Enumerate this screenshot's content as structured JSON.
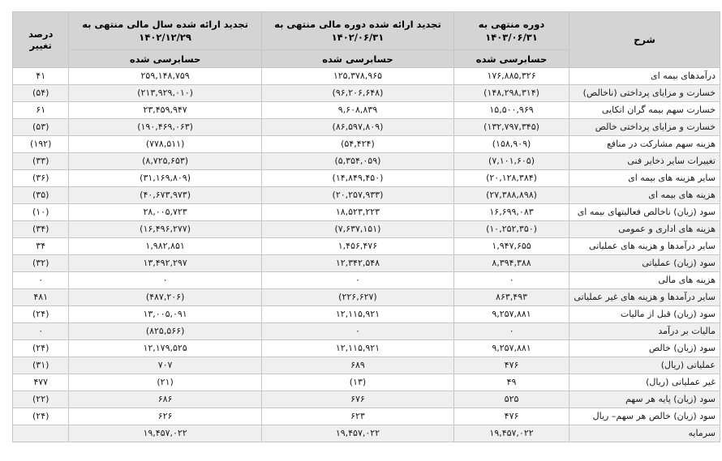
{
  "colors": {
    "header_background": "#d4d4d4",
    "row_alternate_background": "#efefef",
    "row_background": "#ffffff",
    "border": "#c6c6c6",
    "text": "#1a1a1a"
  },
  "table": {
    "header": {
      "description": "شرح",
      "current": {
        "title": "دوره منتهی به",
        "date": "۱۴۰۳/۰۶/۳۱"
      },
      "restated_period": {
        "title": "تجدید ارائه شده دوره مالی منتهی به",
        "date": "۱۴۰۲/۰۶/۳۱"
      },
      "restated_year": {
        "title": "تجدید ارائه شده سال مالی منتهی به",
        "date": "۱۴۰۲/۱۲/۲۹"
      },
      "audited_label": "حسابرسی شده",
      "percent_change": "درصد تغییر"
    },
    "rows": [
      {
        "label": "درآمدهای بیمه ای",
        "current": "۱۷۶,۸۸۵,۳۲۶",
        "restated_period": "۱۲۵,۳۷۸,۹۶۵",
        "restated_year": "۲۵۹,۱۴۸,۷۵۹",
        "pct": "۴۱"
      },
      {
        "label": "خسارت و مزایای پرداختی (ناخالص)",
        "current": "(۱۴۸,۲۹۸,۳۱۴)",
        "restated_period": "(۹۶,۲۰۶,۶۴۸)",
        "restated_year": "(۲۱۳,۹۲۹,۰۱۰)",
        "pct": "(۵۴)"
      },
      {
        "label": "خسارت سهم بیمه گران اتکایی",
        "current": "۱۵,۵۰۰,۹۶۹",
        "restated_period": "۹,۶۰۸,۸۳۹",
        "restated_year": "۲۳,۴۵۹,۹۴۷",
        "pct": "۶۱"
      },
      {
        "label": "خسارت و مزایای پرداختی خالص",
        "current": "(۱۳۲,۷۹۷,۳۴۵)",
        "restated_period": "(۸۶,۵۹۷,۸۰۹)",
        "restated_year": "(۱۹۰,۴۶۹,۰۶۳)",
        "pct": "(۵۳)"
      },
      {
        "label": "هزینه سهم مشارکت در منافع",
        "current": "(۱۵۸,۹۰۹)",
        "restated_period": "(۵۴,۴۲۴)",
        "restated_year": "(۷۷۸,۵۱۱)",
        "pct": "(۱۹۲)"
      },
      {
        "label": "تغییرات سایر ذخایر فنی",
        "current": "(۷,۱۰۱,۶۰۵)",
        "restated_period": "(۵,۳۵۴,۰۵۹)",
        "restated_year": "(۸,۷۲۵,۶۵۳)",
        "pct": "(۳۳)"
      },
      {
        "label": "سایر هزینه های بیمه ای",
        "current": "(۲۰,۱۲۸,۳۸۴)",
        "restated_period": "(۱۴,۸۴۹,۴۵۰)",
        "restated_year": "(۳۱,۱۶۹,۸۰۹)",
        "pct": "(۳۶)"
      },
      {
        "label": "هزینه های بیمه ای",
        "current": "(۲۷,۳۸۸,۸۹۸)",
        "restated_period": "(۲۰,۲۵۷,۹۳۳)",
        "restated_year": "(۴۰,۶۷۳,۹۷۳)",
        "pct": "(۳۵)"
      },
      {
        "label": "سود (زیان) ناخالص فعالیتهای بیمه ای",
        "current": "۱۶,۶۹۹,۰۸۳",
        "restated_period": "۱۸,۵۲۳,۲۲۳",
        "restated_year": "۲۸,۰۰۵,۷۲۳",
        "pct": "(۱۰)"
      },
      {
        "label": "هزینه های اداری و عمومی",
        "current": "(۱۰,۲۵۲,۳۵۰)",
        "restated_period": "(۷,۶۳۷,۱۵۱)",
        "restated_year": "(۱۶,۴۹۶,۲۷۷)",
        "pct": "(۳۴)"
      },
      {
        "label": "سایر درآمدها و هزینه های عملیاتی",
        "current": "۱,۹۴۷,۶۵۵",
        "restated_period": "۱,۴۵۶,۴۷۶",
        "restated_year": "۱,۹۸۲,۸۵۱",
        "pct": "۳۴"
      },
      {
        "label": "سود (زیان) عملیاتی",
        "current": "۸,۳۹۴,۳۸۸",
        "restated_period": "۱۲,۳۴۲,۵۴۸",
        "restated_year": "۱۳,۴۹۲,۲۹۷",
        "pct": "(۳۲)"
      },
      {
        "label": "هزینه های مالی",
        "current": "۰",
        "restated_period": "۰",
        "restated_year": "۰",
        "pct": "۰"
      },
      {
        "label": "سایر درآمدها و هزینه های غیر عملیاتی",
        "current": "۸۶۳,۴۹۳",
        "restated_period": "(۲۲۶,۶۲۷)",
        "restated_year": "(۴۸۷,۲۰۶)",
        "pct": "۴۸۱"
      },
      {
        "label": "سود (زیان) قبل از مالیات",
        "current": "۹,۲۵۷,۸۸۱",
        "restated_period": "۱۲,۱۱۵,۹۲۱",
        "restated_year": "۱۳,۰۰۵,۰۹۱",
        "pct": "(۲۴)"
      },
      {
        "label": "مالیات بر درآمد",
        "current": "۰",
        "restated_period": "۰",
        "restated_year": "(۸۲۵,۵۶۶)",
        "pct": "۰"
      },
      {
        "label": "سود (زیان) خالص",
        "current": "۹,۲۵۷,۸۸۱",
        "restated_period": "۱۲,۱۱۵,۹۲۱",
        "restated_year": "۱۲,۱۷۹,۵۲۵",
        "pct": "(۲۴)"
      },
      {
        "label": "عملیاتی (ریال)",
        "current": "۴۷۶",
        "restated_period": "۶۸۹",
        "restated_year": "۷۰۷",
        "pct": "(۳۱)"
      },
      {
        "label": "غیر عملیاتی (ریال)",
        "current": "۴۹",
        "restated_period": "(۱۳)",
        "restated_year": "(۲۱)",
        "pct": "۴۷۷"
      },
      {
        "label": "سود (زیان) پایه هر سهم",
        "current": "۵۲۵",
        "restated_period": "۶۷۶",
        "restated_year": "۶۸۶",
        "pct": "(۲۲)"
      },
      {
        "label": "سود (زیان) خالص هر سهم– ریال",
        "current": "۴۷۶",
        "restated_period": "۶۲۳",
        "restated_year": "۶۲۶",
        "pct": "(۲۴)"
      },
      {
        "label": "سرمایه",
        "current": "۱۹,۴۵۷,۰۲۲",
        "restated_period": "۱۹,۴۵۷,۰۲۲",
        "restated_year": "۱۹,۴۵۷,۰۲۲",
        "pct": ""
      }
    ]
  }
}
